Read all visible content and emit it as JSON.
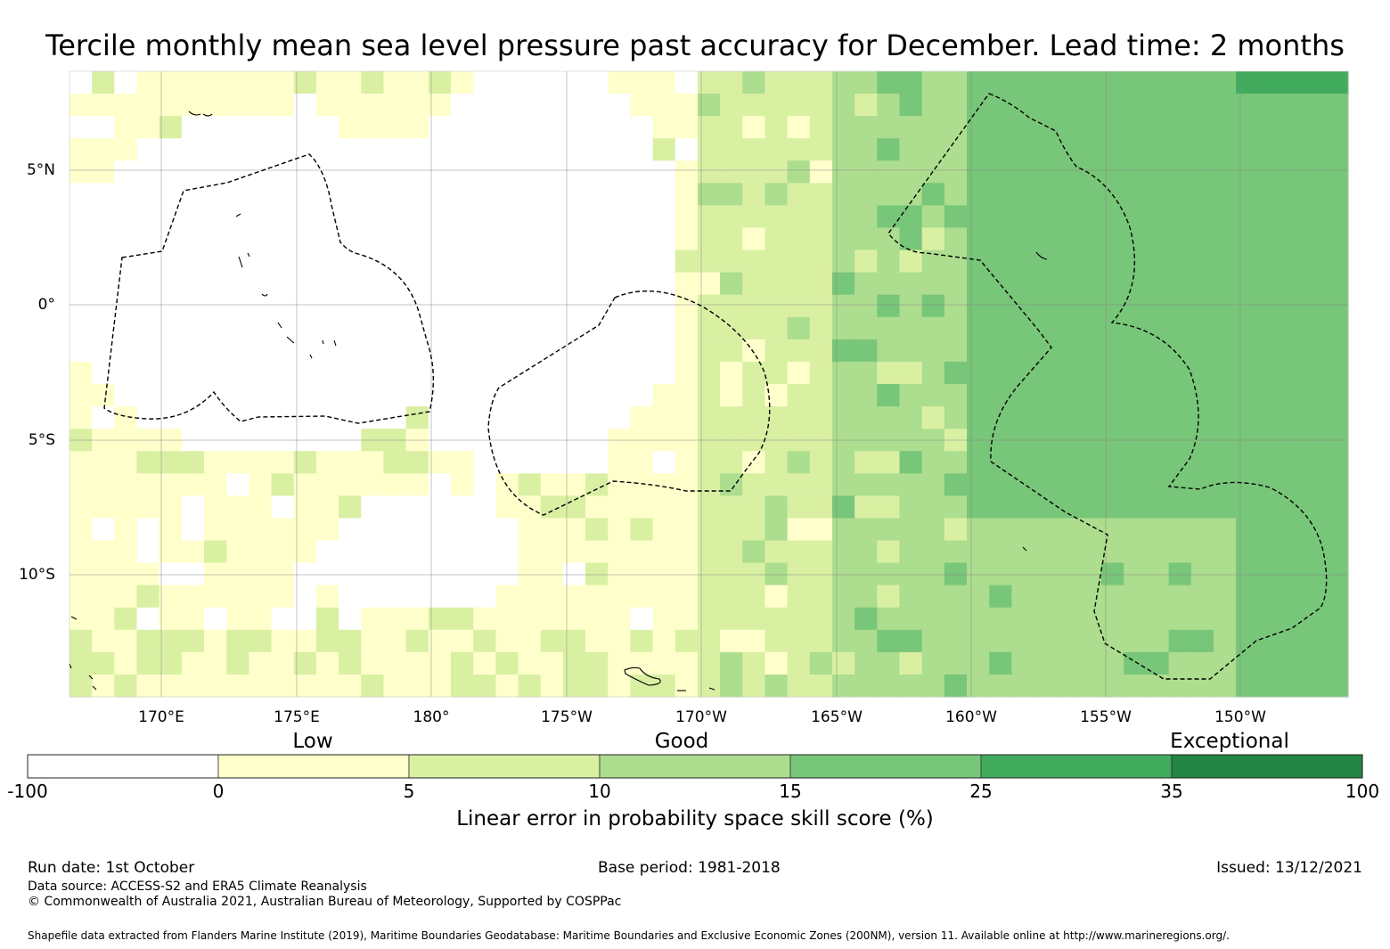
{
  "title": "Tercile monthly mean sea level pressure past accuracy for December. Lead time: 2 months",
  "map": {
    "lon_labels": [
      "170°E",
      "175°E",
      "180°",
      "175°W",
      "170°W",
      "165°W",
      "160°W",
      "155°W",
      "150°W"
    ],
    "lat_labels": [
      "5°N",
      "0°",
      "5°S",
      "10°S"
    ]
  },
  "legend": {
    "categories": [
      "Low",
      "Good",
      "Exceptional"
    ],
    "ticks": [
      "-100",
      "0",
      "5",
      "10",
      "15",
      "25",
      "35",
      "100"
    ],
    "colors": [
      "#ffffff",
      "#ffffcc",
      "#d9f0a3",
      "#addd8e",
      "#78c679",
      "#41ab5d",
      "#238443"
    ],
    "title": "Linear error in probability space skill score (%)"
  },
  "footer": {
    "run_date": "Run date: 1st October",
    "base_period": "Base period: 1981-2018",
    "issued": "Issued: 13/12/2021",
    "data_source": "Data source: ACCESS-S2 and ERA5 Climate Reanalysis",
    "copyright": "© Commonwealth of Australia 2021, Australian Bureau of Meteorology, Supported by COSPPac",
    "shapefile": "Shapefile data extracted from Flanders Marine Institute (2019), Maritime Boundaries Geodatabase: Maritime Boundaries and Exclusive Economic Zones (200NM), version 11. Available online at http://www.marineregions.org/."
  }
}
